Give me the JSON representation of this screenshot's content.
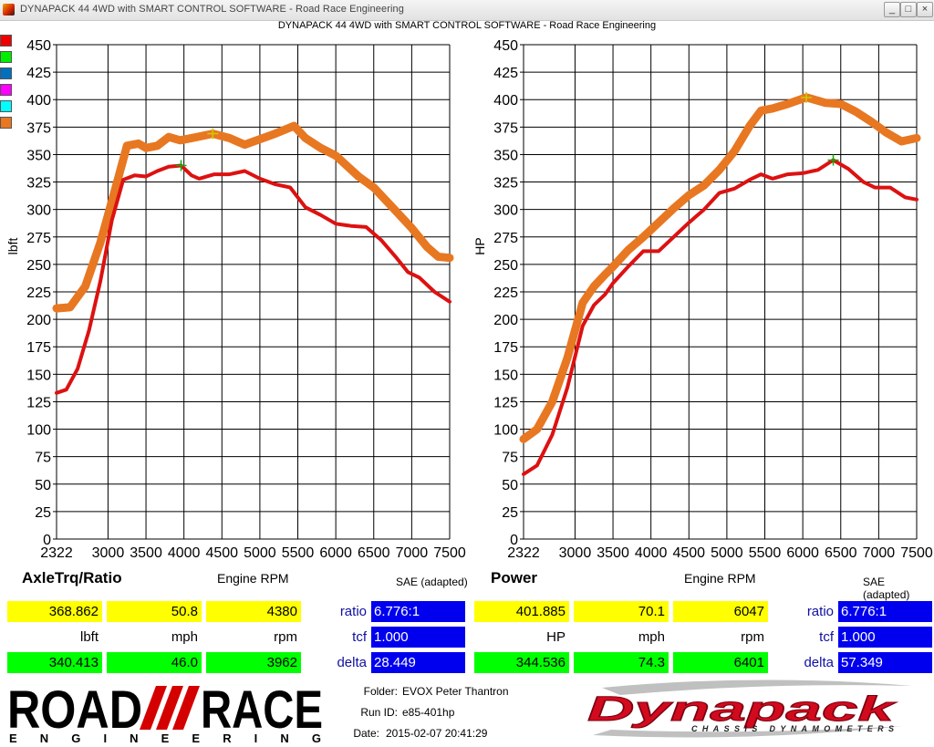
{
  "window": {
    "title": "DYNAPACK 44 4WD with SMART CONTROL SOFTWARE - Road Race Engineering",
    "subtitle": "DYNAPACK 44 4WD with SMART CONTROL SOFTWARE - Road Race Engineering",
    "buttons": [
      "_",
      "□",
      "×"
    ]
  },
  "legend_swatches": [
    "#ee0000",
    "#00ee00",
    "#0070c0",
    "#ff00ff",
    "#00ffff",
    "#e87722"
  ],
  "chart_data": [
    {
      "type": "line",
      "panel_title": "AxleTrq/Ratio",
      "xlabel": "Engine RPM",
      "ylabel": "lbft",
      "note": "SAE (adapted)",
      "xlim": [
        2322,
        7500
      ],
      "ylim": [
        0,
        450
      ],
      "x_ticks": [
        2322,
        3000,
        3500,
        4000,
        4500,
        5000,
        5500,
        6000,
        6500,
        7000,
        7500
      ],
      "y_ticks": [
        0,
        25,
        50,
        75,
        100,
        125,
        150,
        175,
        200,
        225,
        250,
        275,
        300,
        325,
        350,
        375,
        400,
        425,
        450
      ],
      "grid": true,
      "series": [
        {
          "color": "#e87722",
          "width": 9,
          "points": [
            [
              2322,
              210
            ],
            [
              2500,
              211
            ],
            [
              2700,
              230
            ],
            [
              2900,
              270
            ],
            [
              3100,
              320
            ],
            [
              3250,
              358
            ],
            [
              3400,
              360
            ],
            [
              3500,
              356
            ],
            [
              3650,
              358
            ],
            [
              3800,
              366
            ],
            [
              3950,
              363
            ],
            [
              4100,
              365
            ],
            [
              4380,
              369
            ],
            [
              4600,
              365
            ],
            [
              4800,
              359
            ],
            [
              5000,
              364
            ],
            [
              5200,
              369
            ],
            [
              5450,
              376
            ],
            [
              5600,
              365
            ],
            [
              5800,
              356
            ],
            [
              6000,
              349
            ],
            [
              6300,
              330
            ],
            [
              6500,
              320
            ],
            [
              6800,
              298
            ],
            [
              7000,
              283
            ],
            [
              7200,
              266
            ],
            [
              7350,
              257
            ],
            [
              7500,
              256
            ]
          ]
        },
        {
          "color": "#dd1111",
          "width": 4,
          "points": [
            [
              2322,
              133
            ],
            [
              2450,
              136
            ],
            [
              2600,
              155
            ],
            [
              2750,
              190
            ],
            [
              2900,
              235
            ],
            [
              3050,
              290
            ],
            [
              3200,
              327
            ],
            [
              3350,
              331
            ],
            [
              3500,
              330
            ],
            [
              3650,
              335
            ],
            [
              3800,
              339
            ],
            [
              3962,
              340
            ],
            [
              4100,
              331
            ],
            [
              4200,
              328
            ],
            [
              4400,
              332
            ],
            [
              4600,
              332
            ],
            [
              4800,
              335
            ],
            [
              5000,
              328
            ],
            [
              5200,
              323
            ],
            [
              5400,
              320
            ],
            [
              5600,
              302
            ],
            [
              5800,
              295
            ],
            [
              6000,
              287
            ],
            [
              6200,
              285
            ],
            [
              6400,
              284
            ],
            [
              6600,
              272
            ],
            [
              6800,
              256
            ],
            [
              6950,
              243
            ],
            [
              7100,
              238
            ],
            [
              7300,
              225
            ],
            [
              7500,
              216
            ]
          ]
        }
      ],
      "markers": [
        {
          "x": 4380,
          "y": 369,
          "color": "#cccc00"
        },
        {
          "x": 3962,
          "y": 340,
          "color": "#11aa11"
        }
      ]
    },
    {
      "type": "line",
      "panel_title": "Power",
      "xlabel": "Engine RPM",
      "ylabel": "HP",
      "note": "SAE (adapted)",
      "xlim": [
        2322,
        7500
      ],
      "ylim": [
        0,
        450
      ],
      "x_ticks": [
        2322,
        3000,
        3500,
        4000,
        4500,
        5000,
        5500,
        6000,
        6500,
        7000,
        7500
      ],
      "y_ticks": [
        0,
        25,
        50,
        75,
        100,
        125,
        150,
        175,
        200,
        225,
        250,
        275,
        300,
        325,
        350,
        375,
        400,
        425,
        450
      ],
      "grid": true,
      "series": [
        {
          "color": "#e87722",
          "width": 9,
          "points": [
            [
              2322,
              91
            ],
            [
              2500,
              100
            ],
            [
              2700,
              125
            ],
            [
              2900,
              165
            ],
            [
              3100,
              215
            ],
            [
              3250,
              230
            ],
            [
              3400,
              241
            ],
            [
              3500,
              248
            ],
            [
              3700,
              263
            ],
            [
              3900,
              275
            ],
            [
              4100,
              288
            ],
            [
              4300,
              301
            ],
            [
              4500,
              313
            ],
            [
              4700,
              322
            ],
            [
              4900,
              336
            ],
            [
              5100,
              353
            ],
            [
              5300,
              376
            ],
            [
              5450,
              390
            ],
            [
              5600,
              392
            ],
            [
              5800,
              396
            ],
            [
              6047,
              402
            ],
            [
              6300,
              397
            ],
            [
              6500,
              396
            ],
            [
              6700,
              389
            ],
            [
              6900,
              380
            ],
            [
              7100,
              370
            ],
            [
              7300,
              362
            ],
            [
              7500,
              365
            ]
          ]
        },
        {
          "color": "#dd1111",
          "width": 4,
          "points": [
            [
              2322,
              59
            ],
            [
              2500,
              67
            ],
            [
              2700,
              95
            ],
            [
              2900,
              138
            ],
            [
              3100,
              194
            ],
            [
              3250,
              213
            ],
            [
              3400,
              223
            ],
            [
              3500,
              233
            ],
            [
              3700,
              248
            ],
            [
              3900,
              262
            ],
            [
              4100,
              262
            ],
            [
              4300,
              275
            ],
            [
              4500,
              288
            ],
            [
              4700,
              300
            ],
            [
              4900,
              315
            ],
            [
              5100,
              319
            ],
            [
              5300,
              327
            ],
            [
              5450,
              332
            ],
            [
              5600,
              328
            ],
            [
              5800,
              332
            ],
            [
              6000,
              333
            ],
            [
              6200,
              336
            ],
            [
              6401,
              345
            ],
            [
              6600,
              337
            ],
            [
              6800,
              325
            ],
            [
              6950,
              320
            ],
            [
              7150,
              320
            ],
            [
              7350,
              311
            ],
            [
              7500,
              309
            ]
          ]
        }
      ],
      "markers": [
        {
          "x": 6047,
          "y": 402,
          "color": "#cccc00"
        },
        {
          "x": 6401,
          "y": 345,
          "color": "#11aa11"
        }
      ]
    }
  ],
  "readouts": {
    "left": {
      "top_values": [
        "368.862",
        "50.8",
        "4380"
      ],
      "units": [
        "lbft",
        "mph",
        "rpm"
      ],
      "bottom_values": [
        "340.413",
        "46.0",
        "3962"
      ],
      "labels": [
        "ratio",
        "tcf",
        "delta"
      ],
      "info_values": [
        "6.776:1",
        "1.000",
        "28.449"
      ]
    },
    "right": {
      "top_values": [
        "401.885",
        "70.1",
        "6047"
      ],
      "units": [
        "HP",
        "mph",
        "rpm"
      ],
      "bottom_values": [
        "344.536",
        "74.3",
        "6401"
      ],
      "labels": [
        "ratio",
        "tcf",
        "delta"
      ],
      "info_values": [
        "6.776:1",
        "1.000",
        "57.349"
      ]
    }
  },
  "footer": {
    "logo_main": "ROAD",
    "logo_race": "RACE",
    "logo_sub": "E N G I N E E R I N G",
    "folder_label": "Folder:",
    "folder_value": "EVOX Peter Thantron",
    "runid_label": "Run ID:",
    "runid_value": "e85-401hp",
    "date_label": "Date:",
    "date_value": "2015-02-07 20:41:29",
    "brand_logo": "Dynapack",
    "brand_tagline": "CHASSIS DYNAMOMETERS"
  }
}
